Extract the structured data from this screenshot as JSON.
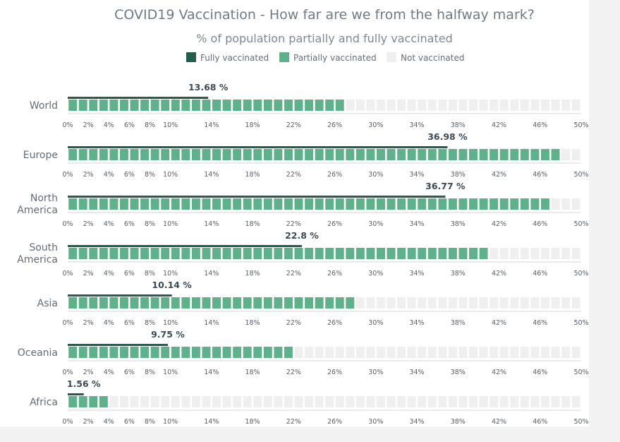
{
  "chart_data": {
    "type": "bar",
    "title": "COVID19 Vaccination - How far are we from the halfway mark?",
    "subtitle": "% of population partially and fully vaccinated",
    "legend": [
      {
        "key": "full",
        "label": "Fully vaccinated",
        "color": "#235e4a"
      },
      {
        "key": "partial",
        "label": "Partially vaccinated",
        "color": "#5fb18c"
      },
      {
        "key": "none",
        "label": "Not vaccinated",
        "color": "#efefef"
      }
    ],
    "legend_position": "top-center",
    "xlim": [
      0,
      50
    ],
    "cell_step": 1,
    "ticks": [
      "0%",
      "2%",
      "4%",
      "6%",
      "8%",
      "10%",
      "14%",
      "18%",
      "22%",
      "26%",
      "30%",
      "34%",
      "38%",
      "42%",
      "46%",
      "50%"
    ],
    "tick_values": [
      0,
      2,
      4,
      6,
      8,
      10,
      14,
      18,
      22,
      26,
      30,
      34,
      38,
      42,
      46,
      50
    ],
    "categories": [
      {
        "name": [
          "World"
        ],
        "fully": 13.68,
        "fully_label": "13.68 %",
        "partial_cells": 27
      },
      {
        "name": [
          "Europe"
        ],
        "fully": 36.98,
        "fully_label": "36.98 %",
        "partial_cells": 48
      },
      {
        "name": [
          "North",
          "America"
        ],
        "fully": 36.77,
        "fully_label": "36.77 %",
        "partial_cells": 47
      },
      {
        "name": [
          "South",
          "America"
        ],
        "fully": 22.8,
        "fully_label": "22.8 %",
        "partial_cells": 41
      },
      {
        "name": [
          "Asia"
        ],
        "fully": 10.14,
        "fully_label": "10.14 %",
        "partial_cells": 28
      },
      {
        "name": [
          "Oceania"
        ],
        "fully": 9.75,
        "fully_label": "9.75 %",
        "partial_cells": 22
      },
      {
        "name": [
          "Africa"
        ],
        "fully": 1.56,
        "fully_label": "1.56 %",
        "partial_cells": 4
      }
    ]
  }
}
